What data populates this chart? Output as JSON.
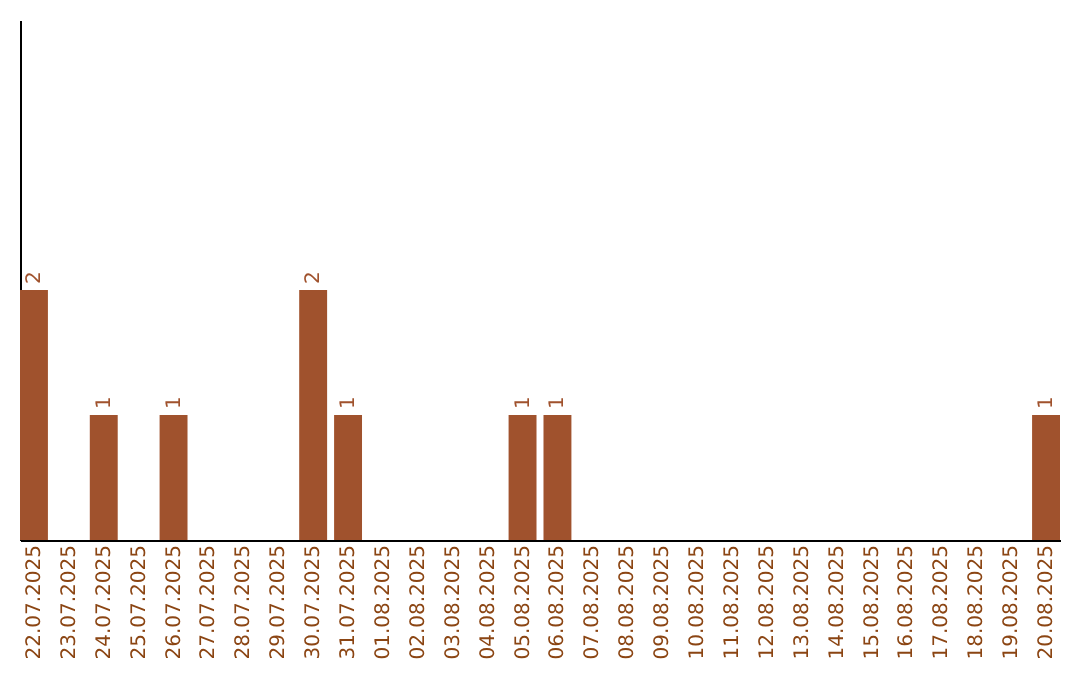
{
  "chart_data": {
    "type": "bar",
    "categories": [
      "22.07.2025",
      "23.07.2025",
      "24.07.2025",
      "25.07.2025",
      "26.07.2025",
      "27.07.2025",
      "28.07.2025",
      "29.07.2025",
      "30.07.2025",
      "31.07.2025",
      "01.08.2025",
      "02.08.2025",
      "03.08.2025",
      "04.08.2025",
      "05.08.2025",
      "06.08.2025",
      "07.08.2025",
      "08.08.2025",
      "09.08.2025",
      "10.08.2025",
      "11.08.2025",
      "12.08.2025",
      "13.08.2025",
      "14.08.2025",
      "15.08.2025",
      "16.08.2025",
      "17.08.2025",
      "18.08.2025",
      "19.08.2025",
      "20.08.2025"
    ],
    "values": [
      2,
      0,
      1,
      0,
      1,
      0,
      0,
      0,
      2,
      1,
      0,
      0,
      0,
      0,
      1,
      1,
      0,
      0,
      0,
      0,
      0,
      0,
      0,
      0,
      0,
      0,
      0,
      0,
      0,
      1
    ],
    "value_labels": [
      "2",
      null,
      "1",
      null,
      "1",
      null,
      null,
      null,
      "2",
      "1",
      null,
      null,
      null,
      null,
      "1",
      "1",
      null,
      null,
      null,
      null,
      null,
      null,
      null,
      null,
      null,
      null,
      null,
      null,
      null,
      "1"
    ],
    "color": "#a0522d",
    "ylim": [
      0,
      4.16
    ],
    "tick_labels": "x",
    "grid": false
  }
}
